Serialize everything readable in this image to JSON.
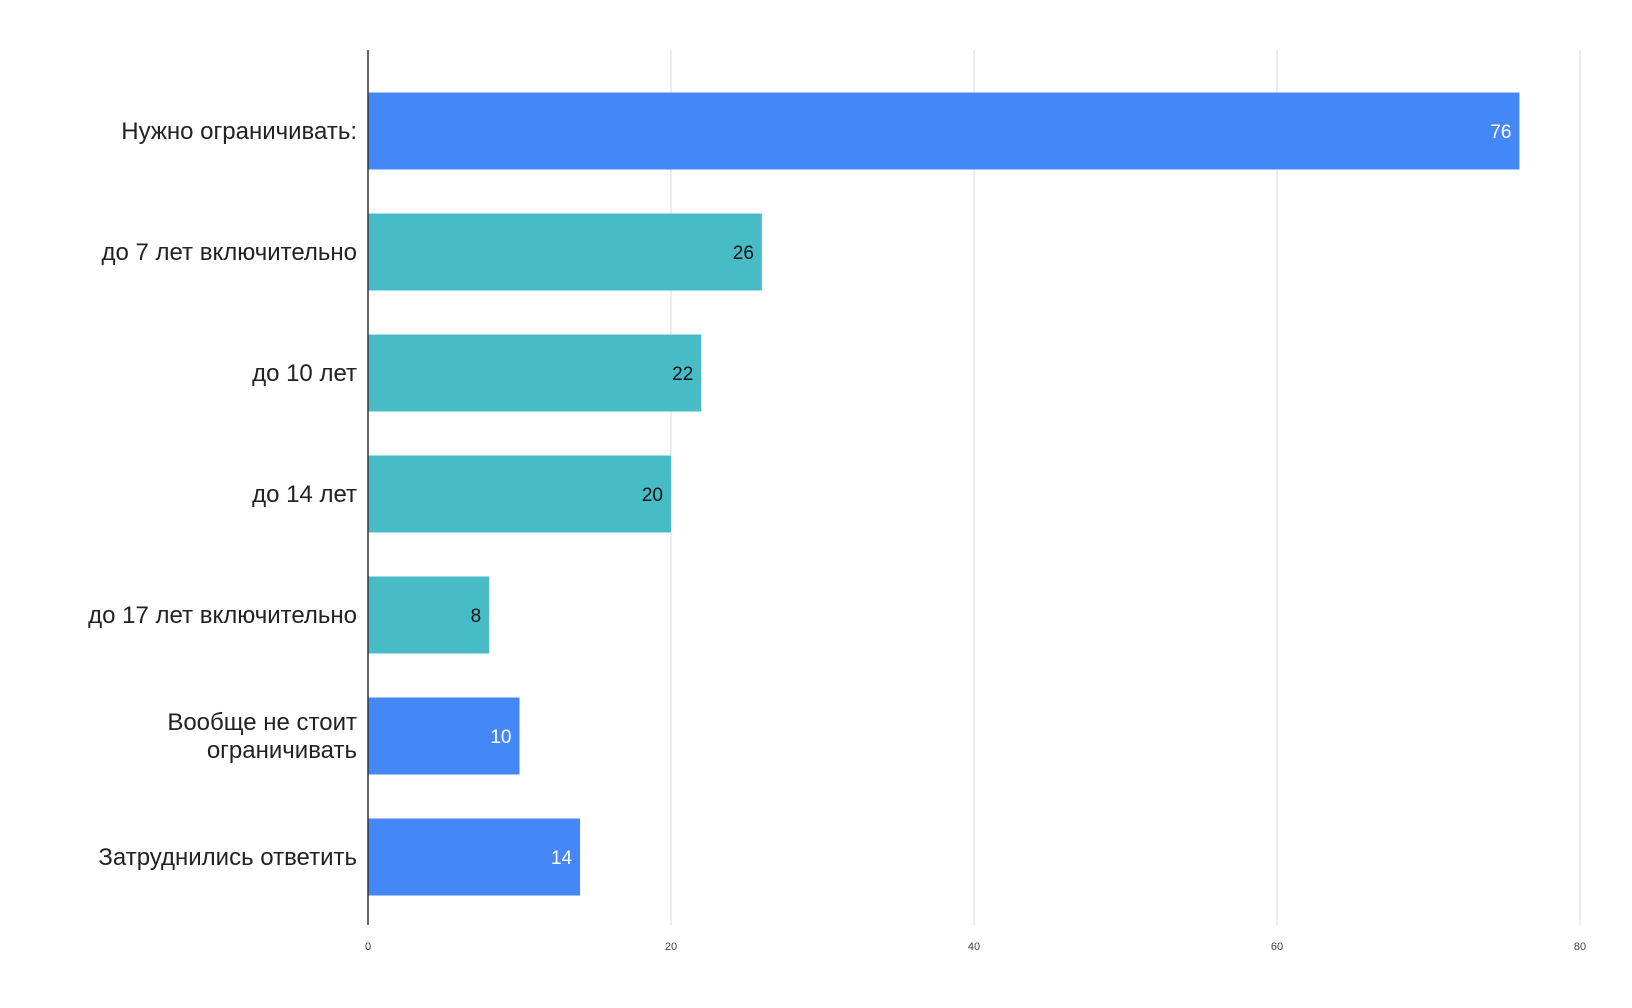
{
  "chart_data": {
    "type": "bar",
    "orientation": "horizontal",
    "title": "",
    "xlabel": "",
    "ylabel": "",
    "categories": [
      [
        "Нужно ограничивать:"
      ],
      [
        "до 7 лет включительно"
      ],
      [
        "до 10 лет"
      ],
      [
        "до 14 лет"
      ],
      [
        "до 17 лет включительно"
      ],
      [
        "Вообще не стоит",
        "ограничивать"
      ],
      [
        "Затруднились ответить"
      ]
    ],
    "values": [
      76,
      26,
      22,
      20,
      8,
      10,
      14
    ],
    "bar_colors": [
      "#4587f6",
      "#47bcc6",
      "#47bcc6",
      "#47bcc6",
      "#47bcc6",
      "#4587f6",
      "#4587f6"
    ],
    "data_label_colors": [
      "#ffffff",
      "#111111",
      "#111111",
      "#111111",
      "#111111",
      "#ffffff",
      "#ffffff"
    ],
    "xlim": [
      0,
      80
    ],
    "xticks": [
      0,
      20,
      40,
      60,
      80
    ],
    "grid": true,
    "legend": "none"
  }
}
